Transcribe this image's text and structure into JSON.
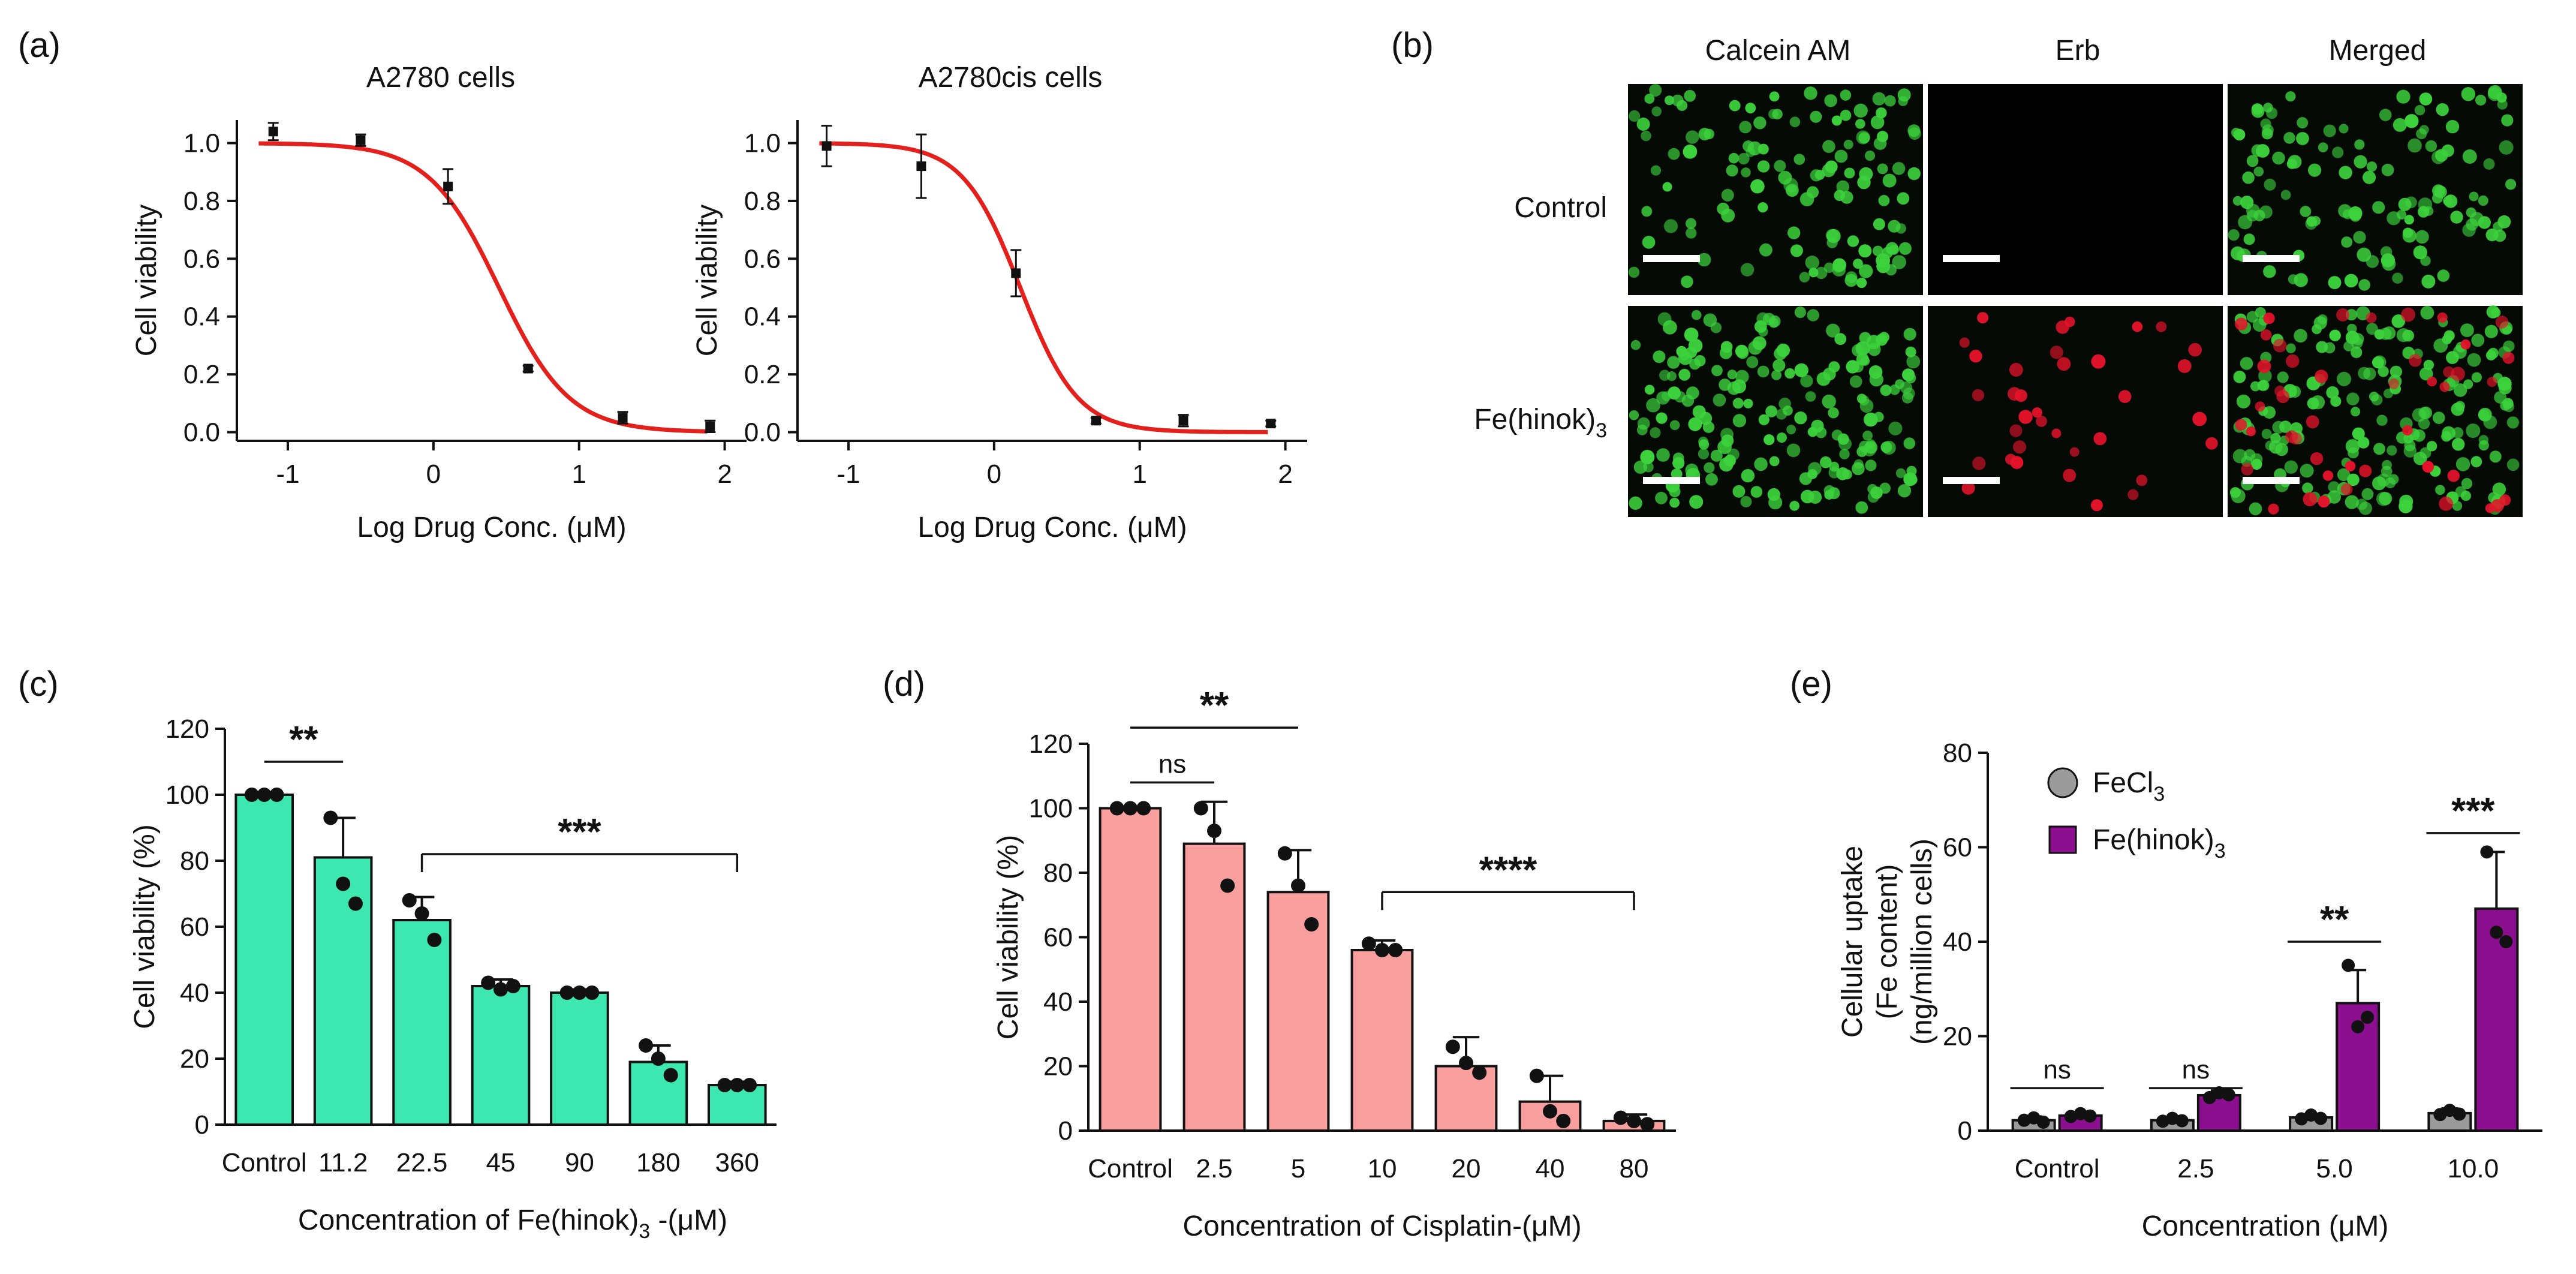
{
  "panel_labels": [
    "(a)",
    "(b)",
    "(c)",
    "(d)",
    "(e)"
  ],
  "colors": {
    "curve": "#e3201b",
    "bar_c": "#3de8b0",
    "bar_d": "#f9a09e",
    "bar_e_fecl3": "#9b9b9b",
    "bar_e_fehinok": "#8b0f8f",
    "cell_green": "#3cd23c",
    "cell_red": "#e5132a"
  },
  "panel_b": {
    "col_headers": [
      "Calcein AM",
      "Erb",
      "Merged"
    ],
    "row_labels": [
      "Control",
      "Fe(hinok)3"
    ],
    "row_label_main": "Fe(hinok)",
    "row_label_sub": "3"
  },
  "chart_data": [
    {
      "type": "scatter",
      "title": "A2780 cells",
      "xlabel": "Log Drug Conc. (μM)",
      "ylabel": "Cell viability",
      "xlim": [
        -1.35,
        2.15
      ],
      "ylim": [
        -0.03,
        1.08
      ],
      "xticks": [
        "-1",
        "0",
        "1",
        "2"
      ],
      "yticks": [
        "0.0",
        "0.2",
        "0.4",
        "0.6",
        "0.8",
        "1.0"
      ],
      "x": [
        -1.1,
        -0.5,
        0.1,
        0.65,
        1.3,
        1.9
      ],
      "y": [
        1.04,
        1.01,
        0.85,
        0.22,
        0.05,
        0.02
      ],
      "err": [
        0.03,
        0.02,
        0.06,
        0.01,
        0.02,
        0.02
      ],
      "fit": {
        "top": 1.0,
        "bottom": 0.0,
        "logIC50": 0.45,
        "hill": 1.8
      }
    },
    {
      "type": "scatter",
      "title": "A2780cis cells",
      "xlabel": "Log Drug Conc. (μM)",
      "ylabel": "Cell viability",
      "xlim": [
        -1.35,
        2.15
      ],
      "ylim": [
        -0.03,
        1.08
      ],
      "xticks": [
        "-1",
        "0",
        "1",
        "2"
      ],
      "yticks": [
        "0.0",
        "0.2",
        "0.4",
        "0.6",
        "0.8",
        "1.0"
      ],
      "x": [
        -1.15,
        -0.5,
        0.15,
        0.7,
        1.3,
        1.9
      ],
      "y": [
        0.99,
        0.92,
        0.55,
        0.04,
        0.04,
        0.03
      ],
      "err": [
        0.07,
        0.11,
        0.08,
        0.01,
        0.02,
        0.01
      ],
      "fit": {
        "top": 1.0,
        "bottom": 0.0,
        "logIC50": 0.18,
        "hill": 2.2
      }
    },
    {
      "type": "bar",
      "xlabel": "Concentration of Fe(hinok)3 -(μM)",
      "xlabel_main": "Concentration of Fe(hinok)",
      "xlabel_sub": "3",
      "xlabel_tail": " -(μM)",
      "ylabel": "Cell viability (%)",
      "ylim": [
        0,
        120
      ],
      "yticks": [
        "0",
        "20",
        "40",
        "60",
        "80",
        "100",
        "120"
      ],
      "categories": [
        "Control",
        "11.2",
        "22.5",
        "45",
        "90",
        "180",
        "360"
      ],
      "values": [
        100,
        81,
        62,
        42,
        40,
        19,
        12
      ],
      "err": [
        0,
        12,
        7,
        2,
        1,
        5,
        1
      ],
      "points": [
        [
          100,
          100,
          100
        ],
        [
          93,
          73,
          67
        ],
        [
          68,
          64,
          56
        ],
        [
          43,
          41,
          42
        ],
        [
          40,
          40,
          40
        ],
        [
          24,
          20,
          15
        ],
        [
          12,
          12,
          12
        ]
      ],
      "annotations": [
        {
          "text": "**",
          "from": 0,
          "to": 1,
          "y": 110
        },
        {
          "text": "***",
          "from": 2,
          "to": 6,
          "y": 82
        }
      ]
    },
    {
      "type": "bar",
      "xlabel": "Concentration of Cisplatin-(μM)",
      "ylabel": "Cell viability (%)",
      "ylim": [
        0,
        120
      ],
      "yticks": [
        "0",
        "20",
        "40",
        "60",
        "80",
        "100",
        "120"
      ],
      "categories": [
        "Control",
        "2.5",
        "5",
        "10",
        "20",
        "40",
        "80"
      ],
      "values": [
        100,
        89,
        74,
        56,
        20,
        9,
        3
      ],
      "err": [
        0,
        13,
        13,
        3,
        9,
        8,
        2
      ],
      "points": [
        [
          100,
          100,
          100
        ],
        [
          100,
          93,
          76
        ],
        [
          86,
          76,
          64
        ],
        [
          58,
          56,
          56
        ],
        [
          26,
          21,
          18
        ],
        [
          17,
          6,
          3
        ],
        [
          4,
          3,
          2
        ]
      ],
      "annotations": [
        {
          "text": "ns",
          "from": 0,
          "to": 1,
          "y": 108
        },
        {
          "text": "**",
          "from": 0,
          "to": 2,
          "y": 125
        },
        {
          "text": "****",
          "from": 3,
          "to": 6,
          "y": 74
        }
      ]
    },
    {
      "type": "bar",
      "xlabel": "Concentration (μM)",
      "ylabel": "Cellular uptake (Fe content) (ng/million cells)",
      "ylabel_lines": [
        "Cellular uptake",
        "(Fe content)",
        "(ng/million cells)"
      ],
      "ylim": [
        0,
        80
      ],
      "yticks": [
        "0",
        "20",
        "40",
        "60",
        "80"
      ],
      "categories": [
        "Control",
        "2.5",
        "5.0",
        "10.0"
      ],
      "series": [
        {
          "name": "FeCl3",
          "legend_main": "FeCl",
          "legend_sub": "3",
          "values": [
            2.2,
            2.2,
            2.8,
            3.7
          ],
          "err": [
            0.8,
            0.7,
            0.7,
            1.0
          ],
          "points": [
            [
              2.2,
              2.7,
              1.8
            ],
            [
              2.0,
              2.6,
              2.1
            ],
            [
              2.5,
              3.3,
              2.6
            ],
            [
              3.4,
              4.3,
              3.5
            ]
          ]
        },
        {
          "name": "Fe(hinok)3",
          "legend_main": "Fe(hinok)",
          "legend_sub": "3",
          "values": [
            3.2,
            7.5,
            27,
            47
          ],
          "err": [
            0.6,
            1.0,
            7,
            12
          ],
          "points": [
            [
              3.0,
              3.6,
              3.1
            ],
            [
              7.0,
              8.0,
              7.6
            ],
            [
              35,
              22,
              24
            ],
            [
              59,
              42,
              40
            ]
          ]
        }
      ],
      "annotations": [
        {
          "text": "ns",
          "group": 0,
          "y": 9
        },
        {
          "text": "ns",
          "group": 1,
          "y": 9
        },
        {
          "text": "**",
          "group": 2,
          "y": 40
        },
        {
          "text": "***",
          "group": 3,
          "y": 63
        }
      ]
    }
  ]
}
